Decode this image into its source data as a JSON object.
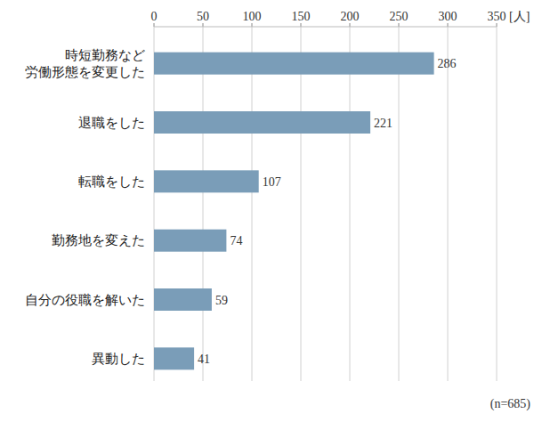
{
  "chart_data": {
    "type": "bar",
    "orientation": "horizontal",
    "categories": [
      "時短勤務など\n労働形態を変更した",
      "退職をした",
      "転職をした",
      "勤務地を変えた",
      "自分の役職を解いた",
      "異動した"
    ],
    "values": [
      286,
      221,
      107,
      74,
      59,
      41
    ],
    "color": "#7a9db8",
    "xlim": [
      0,
      350
    ],
    "xticks": [
      0,
      50,
      100,
      150,
      200,
      250,
      300,
      350
    ],
    "xlabel": "[人]",
    "annotations": [
      "(n=685)"
    ],
    "grid": true,
    "data_labels": true
  }
}
